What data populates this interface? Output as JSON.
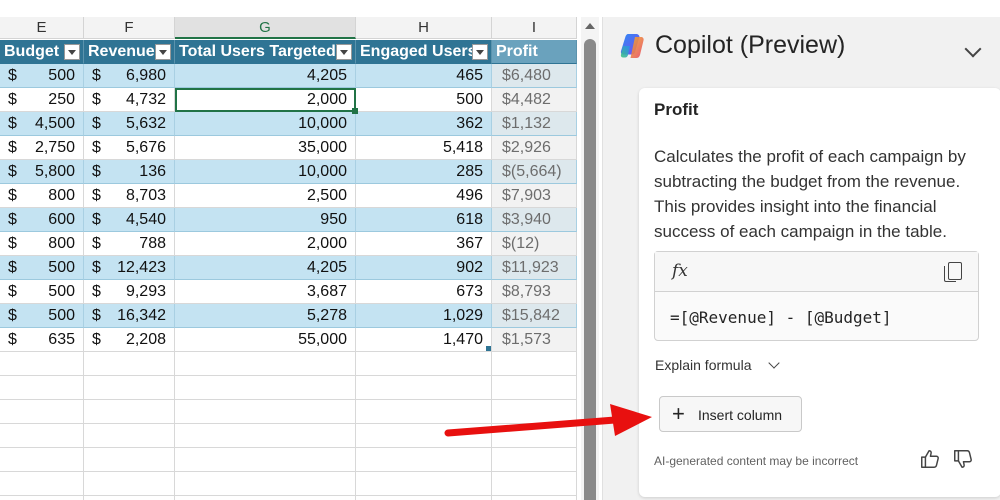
{
  "sheet": {
    "col_letters": [
      "E",
      "F",
      "G",
      "H",
      "I"
    ],
    "headers": [
      "Budget",
      "Revenue",
      "Total Users Targeted",
      "Engaged Users",
      "Profit"
    ],
    "rows": [
      [
        "$",
        "500",
        "$",
        "6,980",
        "4,205",
        "465",
        "$6,480"
      ],
      [
        "$",
        "250",
        "$",
        "4,732",
        "2,000",
        "500",
        "$4,482"
      ],
      [
        "$",
        "4,500",
        "$",
        "5,632",
        "10,000",
        "362",
        "$1,132"
      ],
      [
        "$",
        "2,750",
        "$",
        "5,676",
        "35,000",
        "5,418",
        "$2,926"
      ],
      [
        "$",
        "5,800",
        "$",
        "136",
        "10,000",
        "285",
        "$(5,664)"
      ],
      [
        "$",
        "800",
        "$",
        "8,703",
        "2,500",
        "496",
        "$7,903"
      ],
      [
        "$",
        "600",
        "$",
        "4,540",
        "950",
        "618",
        "$3,940"
      ],
      [
        "$",
        "800",
        "$",
        "788",
        "2,000",
        "367",
        "$(12)"
      ],
      [
        "$",
        "500",
        "$",
        "12,423",
        "4,205",
        "902",
        "$11,923"
      ],
      [
        "$",
        "500",
        "$",
        "9,293",
        "3,687",
        "673",
        "$8,793"
      ],
      [
        "$",
        "500",
        "$",
        "16,342",
        "5,278",
        "1,029",
        "$15,842"
      ],
      [
        "$",
        "635",
        "$",
        "2,208",
        "55,000",
        "1,470",
        "$1,573"
      ]
    ]
  },
  "copilot": {
    "title": "Copilot (Preview)",
    "card": {
      "title": "Profit",
      "description": "Calculates the profit of each campaign by subtracting the budget from the revenue. This provides insight into the financial success of each campaign in the table.",
      "fx_label": "fx",
      "formula": "=[@Revenue] - [@Budget]",
      "explain_label": "Explain formula",
      "insert_plus": "+",
      "insert_label": "Insert column",
      "disclaimer": "AI-generated content may be incorrect"
    }
  },
  "colors": {
    "table_header": "#2f7494",
    "band": "#c4e3f2",
    "excel_green": "#217346",
    "arrow_red": "#e8100f"
  }
}
